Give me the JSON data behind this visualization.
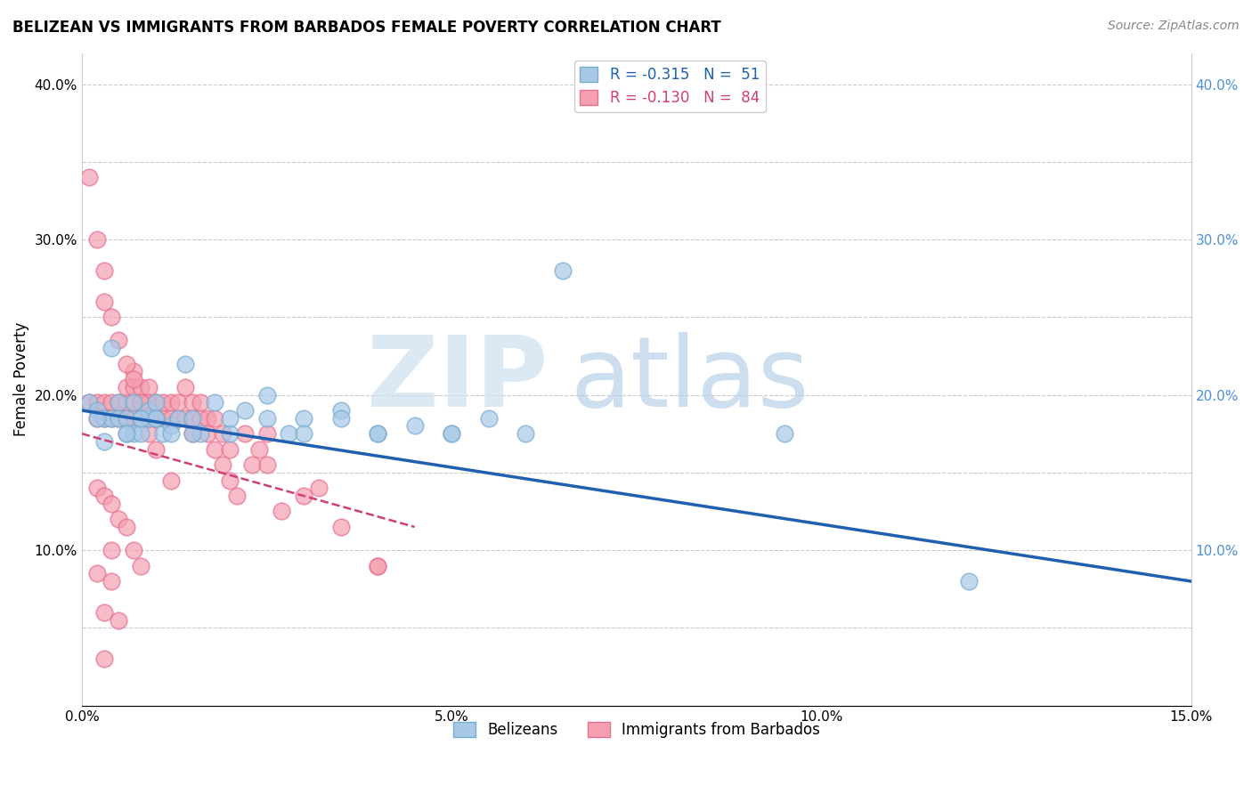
{
  "title": "BELIZEAN VS IMMIGRANTS FROM BARBADOS FEMALE POVERTY CORRELATION CHART",
  "source": "Source: ZipAtlas.com",
  "ylabel": "Female Poverty",
  "xlim": [
    0.0,
    0.15
  ],
  "ylim": [
    0.0,
    0.42
  ],
  "xtick_vals": [
    0.0,
    0.05,
    0.1,
    0.15
  ],
  "xtick_labels": [
    "0.0%",
    "5.0%",
    "10.0%",
    "15.0%"
  ],
  "ytick_vals": [
    0.0,
    0.05,
    0.1,
    0.15,
    0.2,
    0.25,
    0.3,
    0.35,
    0.4
  ],
  "ytick_labels_left": [
    "",
    "",
    "10.0%",
    "",
    "20.0%",
    "",
    "30.0%",
    "",
    "40.0%"
  ],
  "ytick_labels_right": [
    "",
    "",
    "10.0%",
    "",
    "20.0%",
    "",
    "30.0%",
    "",
    "40.0%"
  ],
  "legend_blue_label": "R = -0.315   N =  51",
  "legend_pink_label": "R = -0.130   N =  84",
  "legend_bottom_blue": "Belizeans",
  "legend_bottom_pink": "Immigrants from Barbados",
  "blue_face_color": "#a8c8e8",
  "blue_edge_color": "#7aadcf",
  "pink_face_color": "#f4a0b0",
  "pink_edge_color": "#e87090",
  "blue_line_color": "#2060b0",
  "pink_line_color": "#d04070",
  "blue_x": [
    0.001,
    0.002,
    0.003,
    0.003,
    0.004,
    0.005,
    0.005,
    0.006,
    0.006,
    0.007,
    0.007,
    0.008,
    0.008,
    0.009,
    0.009,
    0.01,
    0.01,
    0.011,
    0.012,
    0.013,
    0.014,
    0.015,
    0.016,
    0.018,
    0.02,
    0.022,
    0.025,
    0.028,
    0.03,
    0.035,
    0.04,
    0.045,
    0.05,
    0.055,
    0.06,
    0.065,
    0.002,
    0.004,
    0.006,
    0.008,
    0.01,
    0.012,
    0.015,
    0.02,
    0.025,
    0.03,
    0.035,
    0.04,
    0.05,
    0.095,
    0.12
  ],
  "blue_y": [
    0.195,
    0.19,
    0.185,
    0.17,
    0.185,
    0.195,
    0.185,
    0.185,
    0.175,
    0.175,
    0.195,
    0.185,
    0.175,
    0.185,
    0.19,
    0.185,
    0.195,
    0.175,
    0.18,
    0.185,
    0.22,
    0.185,
    0.175,
    0.195,
    0.175,
    0.19,
    0.2,
    0.175,
    0.185,
    0.19,
    0.175,
    0.18,
    0.175,
    0.185,
    0.175,
    0.28,
    0.185,
    0.23,
    0.175,
    0.185,
    0.185,
    0.175,
    0.175,
    0.185,
    0.185,
    0.175,
    0.185,
    0.175,
    0.175,
    0.175,
    0.08
  ],
  "pink_x": [
    0.001,
    0.002,
    0.002,
    0.003,
    0.003,
    0.004,
    0.004,
    0.005,
    0.005,
    0.006,
    0.006,
    0.006,
    0.007,
    0.007,
    0.007,
    0.007,
    0.008,
    0.008,
    0.008,
    0.009,
    0.009,
    0.009,
    0.009,
    0.01,
    0.01,
    0.01,
    0.011,
    0.011,
    0.012,
    0.012,
    0.013,
    0.013,
    0.014,
    0.014,
    0.015,
    0.015,
    0.015,
    0.016,
    0.016,
    0.017,
    0.017,
    0.018,
    0.018,
    0.019,
    0.019,
    0.02,
    0.02,
    0.021,
    0.022,
    0.023,
    0.024,
    0.025,
    0.025,
    0.027,
    0.03,
    0.032,
    0.035,
    0.04,
    0.001,
    0.002,
    0.003,
    0.003,
    0.004,
    0.005,
    0.006,
    0.007,
    0.008,
    0.009,
    0.01,
    0.012,
    0.002,
    0.003,
    0.004,
    0.005,
    0.006,
    0.007,
    0.008,
    0.002,
    0.003,
    0.003,
    0.004,
    0.004,
    0.005,
    0.04
  ],
  "pink_y": [
    0.195,
    0.195,
    0.185,
    0.185,
    0.195,
    0.195,
    0.185,
    0.195,
    0.185,
    0.195,
    0.185,
    0.205,
    0.195,
    0.215,
    0.185,
    0.205,
    0.195,
    0.185,
    0.205,
    0.185,
    0.205,
    0.185,
    0.195,
    0.185,
    0.195,
    0.185,
    0.185,
    0.195,
    0.185,
    0.195,
    0.185,
    0.195,
    0.185,
    0.205,
    0.185,
    0.195,
    0.175,
    0.185,
    0.195,
    0.185,
    0.175,
    0.165,
    0.185,
    0.175,
    0.155,
    0.165,
    0.145,
    0.135,
    0.175,
    0.155,
    0.165,
    0.175,
    0.155,
    0.125,
    0.135,
    0.14,
    0.115,
    0.09,
    0.34,
    0.3,
    0.28,
    0.26,
    0.25,
    0.235,
    0.22,
    0.21,
    0.195,
    0.175,
    0.165,
    0.145,
    0.14,
    0.135,
    0.13,
    0.12,
    0.115,
    0.1,
    0.09,
    0.085,
    0.06,
    0.03,
    0.1,
    0.08,
    0.055,
    0.09
  ]
}
